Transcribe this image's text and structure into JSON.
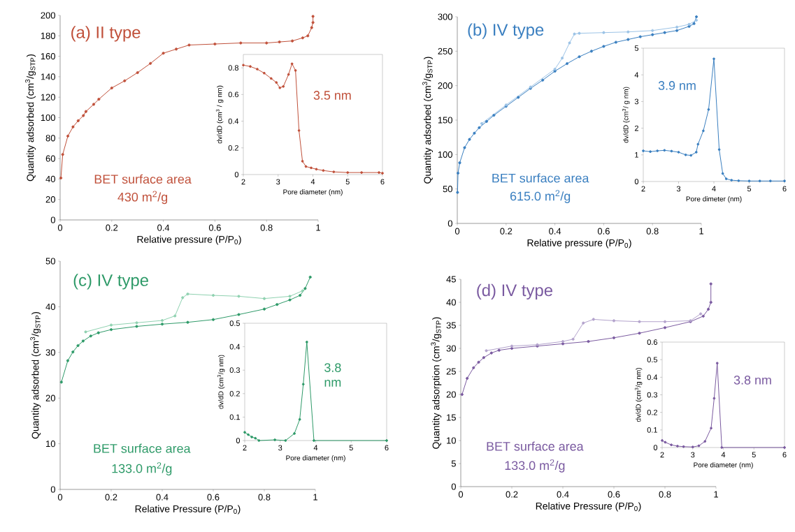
{
  "chart_data": [
    {
      "type": "line",
      "title": "(a) II type",
      "xlabel": "Relative pressure (P/P$_{0}$)",
      "ylabel": "Quantity adsorbed (cm$^{3}$/g$_{STP}$)",
      "annotations": [
        "BET surface area",
        "430 m$^{2}$/g"
      ],
      "marker": "circle",
      "xlim": [
        0,
        1
      ],
      "ylim": [
        0,
        200
      ],
      "xticks": [
        0,
        0.2,
        0.4,
        0.6,
        0.8,
        1
      ],
      "yticks": [
        0,
        20,
        40,
        60,
        80,
        100,
        120,
        140,
        160,
        180,
        200
      ],
      "series": [
        {
          "color": "#c0503a",
          "x": [
            0.003,
            0.01,
            0.03,
            0.05,
            0.07,
            0.09,
            0.1,
            0.13,
            0.15,
            0.2,
            0.25,
            0.3,
            0.35,
            0.4,
            0.45,
            0.5,
            0.6,
            0.7,
            0.8,
            0.85,
            0.9,
            0.94,
            0.96,
            0.975,
            0.98,
            0.98
          ],
          "values": [
            41,
            64,
            82,
            91,
            97,
            102,
            106,
            113,
            118,
            129,
            136,
            144,
            153,
            163,
            167,
            171,
            172,
            173,
            173,
            174,
            175,
            178,
            180,
            188,
            193,
            199
          ]
        }
      ]
    },
    {
      "type": "line",
      "xlabel": "Pore diameter (nm)",
      "ylabel": "dv/dD (cm$^{3}$ / g nm)",
      "annotations": [
        "3.5 nm"
      ],
      "marker": "circle",
      "xlim": [
        2,
        6
      ],
      "ylim": [
        0,
        0.9
      ],
      "xticks": [
        2,
        3,
        4,
        5,
        6
      ],
      "yticks": [
        0,
        0.2,
        0.4,
        0.6,
        0.8
      ],
      "series": [
        {
          "color": "#c0503a",
          "x": [
            2.0,
            2.2,
            2.4,
            2.6,
            2.8,
            2.95,
            3.05,
            3.15,
            3.3,
            3.4,
            3.5,
            3.6,
            3.7,
            3.8,
            3.95,
            4.1,
            4.3,
            4.6,
            5.0,
            5.4,
            5.9,
            6.0
          ],
          "values": [
            0.82,
            0.81,
            0.79,
            0.76,
            0.72,
            0.69,
            0.65,
            0.66,
            0.75,
            0.83,
            0.78,
            0.33,
            0.1,
            0.06,
            0.05,
            0.04,
            0.03,
            0.02,
            0.015,
            0.015,
            0.015,
            0.01
          ]
        }
      ]
    },
    {
      "type": "line",
      "title": "(b) IV type",
      "xlabel": "Relative pressure (P/P$_{0}$)",
      "ylabel": "Quantity adsorbed (cm$^{3}$/g$_{STP}$)",
      "annotations": [
        "BET surface area",
        "615.0 m$^{2}$/g"
      ],
      "marker": "circle",
      "xlim": [
        0,
        1
      ],
      "ylim": [
        0,
        300
      ],
      "xticks": [
        0,
        0.2,
        0.4,
        0.6,
        0.8,
        1
      ],
      "yticks": [
        0,
        50,
        100,
        150,
        200,
        250,
        300
      ],
      "series": [
        {
          "color": "#3a7fc0",
          "x": [
            0.001,
            0.003,
            0.01,
            0.03,
            0.05,
            0.07,
            0.09,
            0.12,
            0.15,
            0.2,
            0.25,
            0.3,
            0.35,
            0.4,
            0.45,
            0.5,
            0.55,
            0.6,
            0.65,
            0.7,
            0.75,
            0.8,
            0.85,
            0.9,
            0.95,
            0.97,
            0.98
          ],
          "values": [
            45,
            73,
            88,
            110,
            122,
            131,
            139,
            148,
            157,
            170,
            183,
            196,
            208,
            221,
            232,
            242,
            250,
            257,
            263,
            267,
            271,
            274,
            277,
            280,
            286,
            290,
            300
          ]
        },
        {
          "color": "#9cc3e6",
          "x": [
            0.98,
            0.95,
            0.9,
            0.8,
            0.7,
            0.6,
            0.5,
            0.48,
            0.46,
            0.43,
            0.4,
            0.3,
            0.2,
            0.1
          ],
          "values": [
            295,
            289,
            285,
            280,
            278,
            277,
            276,
            275,
            262,
            240,
            224,
            198,
            172,
            145
          ]
        }
      ]
    },
    {
      "type": "line",
      "xlabel": "Pore dimeter (nm)",
      "ylabel": "dv/dD (cm$^{3}$/ g nm)",
      "annotations": [
        "3.9 nm"
      ],
      "marker": "circle",
      "xlim": [
        2,
        6
      ],
      "ylim": [
        0,
        5
      ],
      "xticks": [
        2,
        3,
        4,
        5,
        6
      ],
      "yticks": [
        0,
        1,
        2,
        3,
        4,
        5
      ],
      "series": [
        {
          "color": "#3a7fc0",
          "x": [
            2.0,
            2.2,
            2.4,
            2.6,
            2.8,
            3.0,
            3.2,
            3.35,
            3.5,
            3.55,
            3.7,
            3.85,
            4.0,
            4.15,
            4.25,
            4.35,
            4.5,
            4.7,
            5.0,
            5.3,
            5.6,
            6.0
          ],
          "values": [
            1.15,
            1.12,
            1.15,
            1.17,
            1.14,
            1.1,
            1.0,
            0.98,
            1.1,
            1.4,
            1.9,
            2.7,
            4.6,
            1.2,
            0.3,
            0.1,
            0.05,
            0.03,
            0.02,
            0.02,
            0.02,
            0.02
          ]
        }
      ]
    },
    {
      "type": "line",
      "title": "(c) IV type",
      "xlabel": "Relative Pressure (P/P$_{0}$)",
      "ylabel": "Quantity adsorbed (cm$^{3}$/g$_{STP}$)",
      "annotations": [
        "BET surface area",
        "133.0 m$^{2}$/g"
      ],
      "marker": "circle",
      "xlim": [
        0,
        1
      ],
      "ylim": [
        0,
        50
      ],
      "xticks": [
        0,
        0.2,
        0.4,
        0.6,
        0.8,
        1
      ],
      "yticks": [
        0,
        10,
        20,
        30,
        40,
        50
      ],
      "series": [
        {
          "color": "#2e9a68",
          "x": [
            0.005,
            0.03,
            0.05,
            0.07,
            0.09,
            0.12,
            0.15,
            0.2,
            0.3,
            0.4,
            0.5,
            0.6,
            0.7,
            0.8,
            0.85,
            0.9,
            0.94,
            0.96,
            0.98
          ],
          "values": [
            23.5,
            28.2,
            30.1,
            31.5,
            32.5,
            33.6,
            34.3,
            35,
            35.7,
            36.2,
            36.6,
            37.2,
            38.3,
            39.5,
            40.5,
            41.5,
            42.5,
            44,
            46.5
          ]
        },
        {
          "color": "#8fd1b0",
          "x": [
            0.95,
            0.9,
            0.8,
            0.7,
            0.6,
            0.5,
            0.48,
            0.45,
            0.4,
            0.3,
            0.2,
            0.1
          ],
          "values": [
            43.5,
            42.3,
            41.8,
            42.3,
            42.5,
            42.8,
            42,
            38,
            37,
            36.5,
            36,
            34.5
          ]
        }
      ]
    },
    {
      "type": "line",
      "xlabel": "Pore diameter (nm)",
      "ylabel": "dv/dD (cm$^{3}$/g nm)",
      "annotations": [
        "3.8 nm"
      ],
      "marker": "circle",
      "xlim": [
        2,
        6
      ],
      "ylim": [
        0,
        0.5
      ],
      "xticks": [
        2,
        3,
        4,
        5,
        6
      ],
      "yticks": [
        0,
        0.1,
        0.2,
        0.3,
        0.4,
        0.5
      ],
      "series": [
        {
          "color": "#2e9a68",
          "x": [
            2.0,
            2.1,
            2.2,
            2.3,
            2.4,
            2.85,
            3.15,
            3.4,
            3.55,
            3.65,
            3.75,
            3.95,
            6.0
          ],
          "values": [
            0.035,
            0.025,
            0.015,
            0.01,
            0.0,
            0.003,
            0.0,
            0.03,
            0.09,
            0.24,
            0.42,
            0.0,
            0.0
          ]
        }
      ]
    },
    {
      "type": "line",
      "title": "(d) IV type",
      "xlabel": "Relative Pressure (P/P$_{0}$)",
      "ylabel": "Quantity adsorption (cm$^{3}$/g$_{STP}$)",
      "annotations": [
        "BET surface area",
        "133.0 m$^{2}$/g"
      ],
      "marker": "circle",
      "xlim": [
        0,
        1
      ],
      "ylim": [
        0,
        45
      ],
      "xticks": [
        0,
        0.2,
        0.4,
        0.6,
        0.8,
        1
      ],
      "yticks": [
        0,
        5,
        10,
        15,
        20,
        25,
        30,
        35,
        40,
        45
      ],
      "series": [
        {
          "color": "#7a5aa0",
          "x": [
            0.005,
            0.025,
            0.05,
            0.07,
            0.09,
            0.12,
            0.15,
            0.2,
            0.3,
            0.4,
            0.5,
            0.6,
            0.7,
            0.8,
            0.9,
            0.95,
            0.97,
            0.98,
            0.98
          ],
          "values": [
            20,
            23.5,
            25.8,
            27,
            28,
            29,
            29.6,
            30,
            30.5,
            31,
            31.5,
            32.3,
            33.3,
            34.5,
            35.8,
            37,
            38.5,
            40,
            44
          ]
        },
        {
          "color": "#b3a3cc",
          "x": [
            0.94,
            0.9,
            0.8,
            0.7,
            0.6,
            0.52,
            0.48,
            0.44,
            0.4,
            0.3,
            0.2,
            0.1
          ],
          "values": [
            37.5,
            36,
            35.8,
            35.8,
            36,
            36.3,
            35.5,
            32,
            31.5,
            30.8,
            30.5,
            29.5
          ]
        }
      ]
    },
    {
      "type": "line",
      "xlabel": "Pore diameter (nm)",
      "ylabel": "dv/dD (cm$^{3}$/g nm)",
      "annotations": [
        "3.8 nm"
      ],
      "marker": "circle",
      "xlim": [
        2,
        6
      ],
      "ylim": [
        0,
        0.6
      ],
      "xticks": [
        2,
        3,
        4,
        5,
        6
      ],
      "yticks": [
        0,
        0.1,
        0.2,
        0.3,
        0.4,
        0.5,
        0.6
      ],
      "series": [
        {
          "color": "#7a5aa0",
          "x": [
            2.0,
            2.1,
            2.3,
            2.5,
            2.7,
            3.0,
            3.2,
            3.4,
            3.6,
            3.7,
            3.8,
            3.95,
            6.0
          ],
          "values": [
            0.04,
            0.03,
            0.015,
            0.008,
            0.005,
            0.003,
            0.01,
            0.035,
            0.11,
            0.28,
            0.48,
            0.0,
            0.0
          ]
        }
      ]
    }
  ]
}
